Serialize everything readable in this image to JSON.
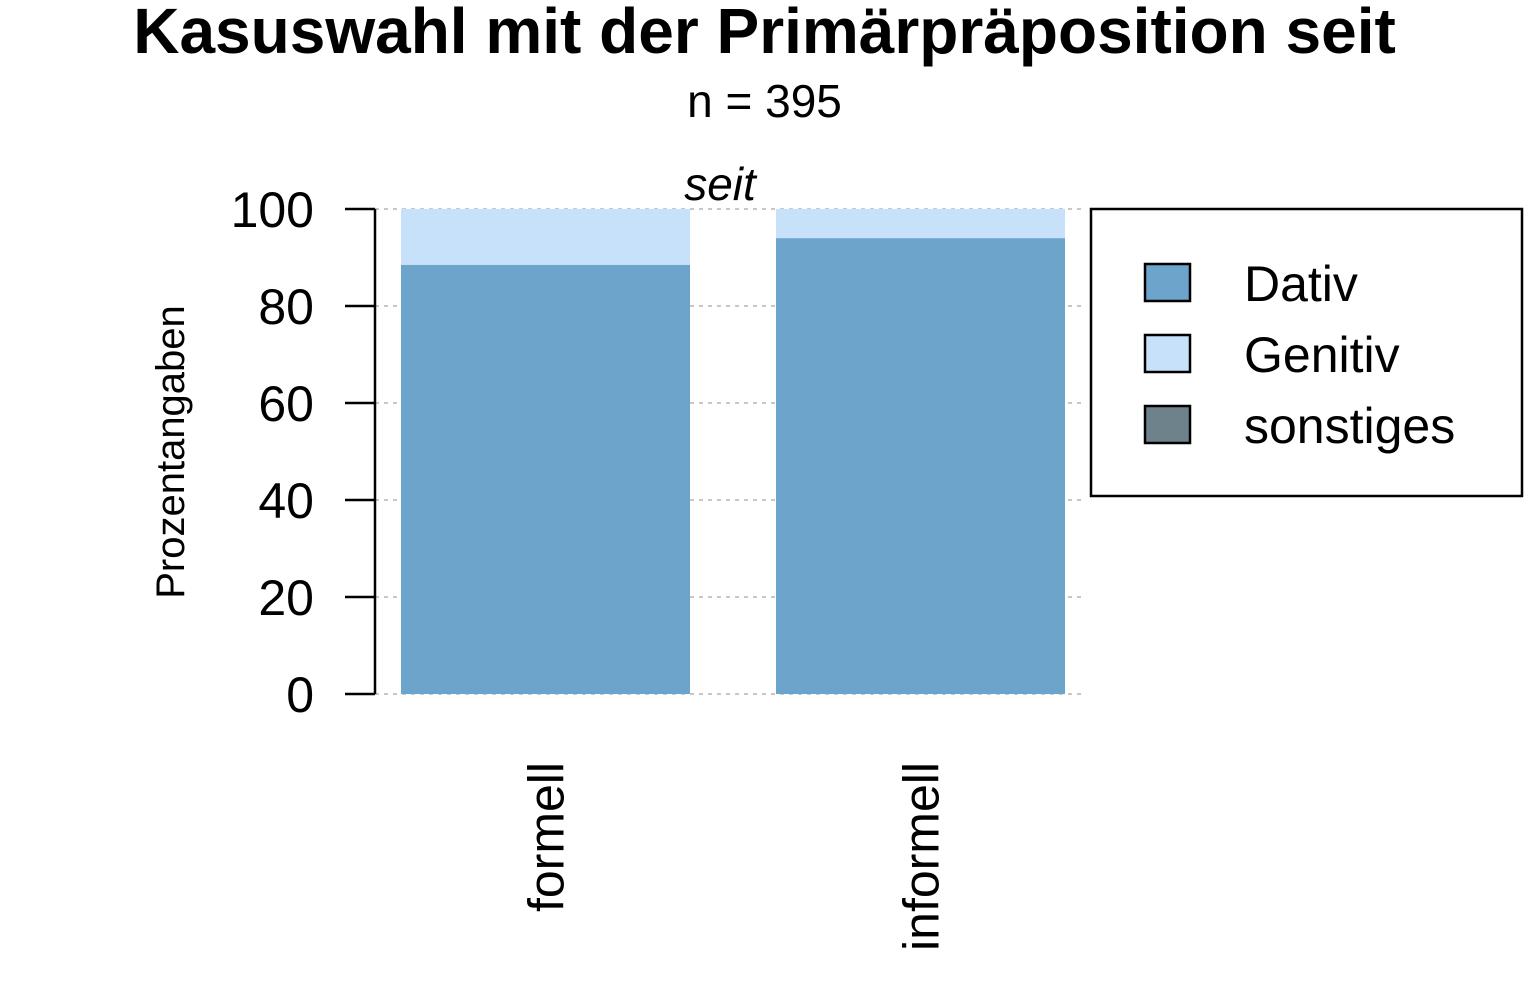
{
  "chart_data": {
    "type": "bar",
    "stacked": true,
    "title": "Kasuswahl mit der Primärpräposition seit",
    "subtitle": "n = 395",
    "panel_label": "seit",
    "xlabel": "",
    "ylabel": "Prozentangaben",
    "ylim": [
      0,
      100
    ],
    "yticks": [
      0,
      20,
      40,
      60,
      80,
      100
    ],
    "grid": true,
    "legend_position": "right",
    "categories": [
      "formell",
      "informell"
    ],
    "series": [
      {
        "name": "Dativ",
        "values": [
          88.5,
          94
        ],
        "color": "#6ca4cb"
      },
      {
        "name": "Genitiv",
        "values": [
          11.5,
          6
        ],
        "color": "#c6e1f9"
      },
      {
        "name": "sonstiges",
        "values": [
          0,
          0
        ],
        "color": "#6e828c"
      }
    ]
  }
}
